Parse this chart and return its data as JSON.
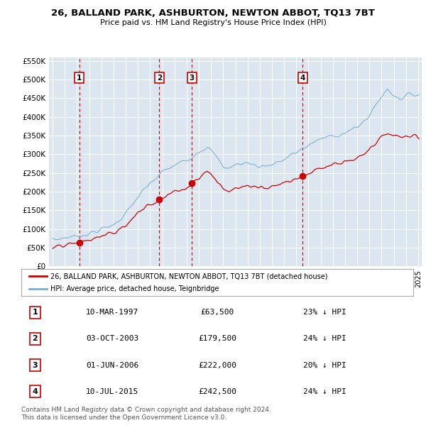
{
  "title": "26, BALLAND PARK, ASHBURTON, NEWTON ABBOT, TQ13 7BT",
  "subtitle": "Price paid vs. HM Land Registry's House Price Index (HPI)",
  "ylim": [
    0,
    560000
  ],
  "yticks": [
    0,
    50000,
    100000,
    150000,
    200000,
    250000,
    300000,
    350000,
    400000,
    450000,
    500000,
    550000
  ],
  "ytick_labels": [
    "£0",
    "£50K",
    "£100K",
    "£150K",
    "£200K",
    "£250K",
    "£300K",
    "£350K",
    "£400K",
    "£450K",
    "£500K",
    "£550K"
  ],
  "xlim_start": 1994.7,
  "xlim_end": 2025.3,
  "plot_bg_color": "#dce6f1",
  "grid_color": "#ffffff",
  "sale_color": "#cc0000",
  "hpi_color": "#7aadd4",
  "sales": [
    {
      "year": 1997.19,
      "price": 63500,
      "label": "1"
    },
    {
      "year": 2003.75,
      "price": 179500,
      "label": "2"
    },
    {
      "year": 2006.42,
      "price": 222000,
      "label": "3"
    },
    {
      "year": 2015.52,
      "price": 242500,
      "label": "4"
    }
  ],
  "table_rows": [
    {
      "num": "1",
      "date": "10-MAR-1997",
      "price": "£63,500",
      "hpi": "23% ↓ HPI"
    },
    {
      "num": "2",
      "date": "03-OCT-2003",
      "price": "£179,500",
      "hpi": "24% ↓ HPI"
    },
    {
      "num": "3",
      "date": "01-JUN-2006",
      "price": "£222,000",
      "hpi": "20% ↓ HPI"
    },
    {
      "num": "4",
      "date": "10-JUL-2015",
      "price": "£242,500",
      "hpi": "24% ↓ HPI"
    }
  ],
  "footer": "Contains HM Land Registry data © Crown copyright and database right 2024.\nThis data is licensed under the Open Government Licence v3.0.",
  "legend_sale": "26, BALLAND PARK, ASHBURTON, NEWTON ABBOT, TQ13 7BT (detached house)",
  "legend_hpi": "HPI: Average price, detached house, Teignbridge"
}
